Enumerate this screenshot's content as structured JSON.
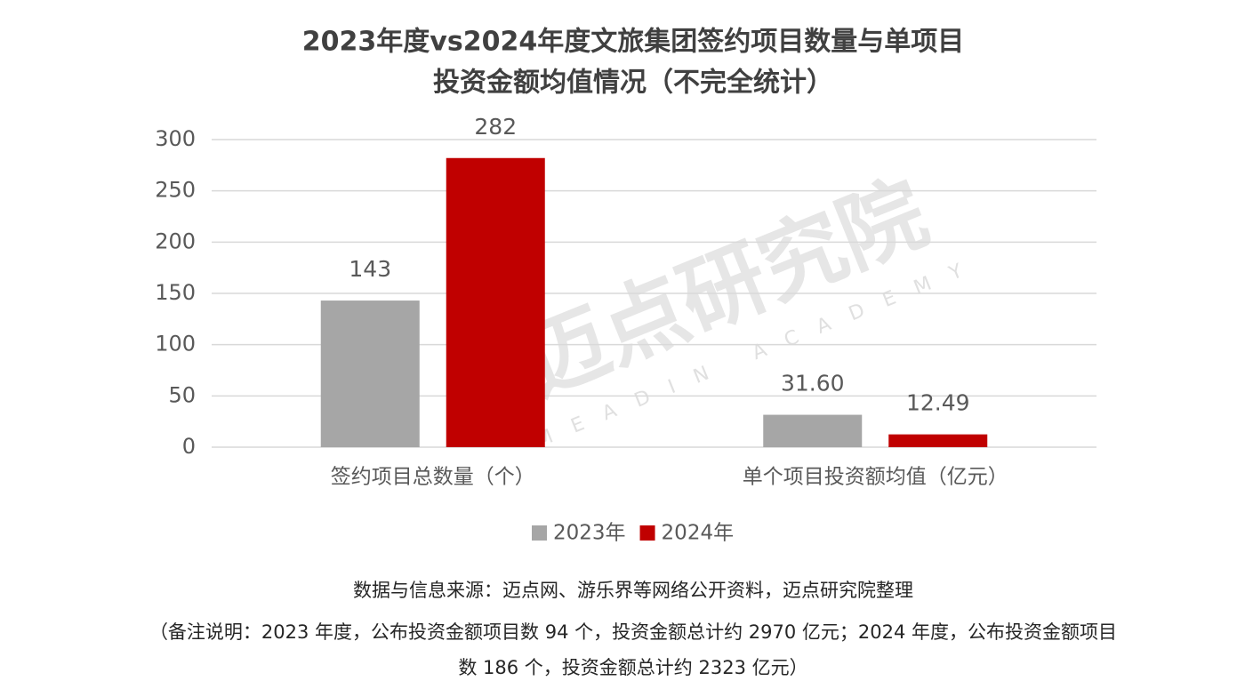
{
  "chart_data": {
    "type": "bar",
    "title": [
      "2023年度vs2024年度文旅集团签约项目数量与单项目",
      "投资金额均值情况（不完全统计）"
    ],
    "categories": [
      "签约项目总数量（个）",
      "单个项目投资额均值（亿元）"
    ],
    "series": [
      {
        "name": "2023年",
        "color": "#a6a6a6",
        "values": [
          143,
          31.6
        ],
        "value_labels": [
          "143",
          "31.60"
        ]
      },
      {
        "name": "2024年",
        "color": "#c00000",
        "values": [
          282,
          12.49
        ],
        "value_labels": [
          "282",
          "12.49"
        ]
      }
    ],
    "ylim": [
      0,
      300
    ],
    "yticks": [
      0,
      50,
      100,
      150,
      200,
      250,
      300
    ],
    "grid": true,
    "legend": "bottom",
    "watermark": {
      "text": "迈点研究院",
      "subtext": "MEADIN ACADEMY"
    },
    "source": "数据与信息来源：迈点网、游乐界等网络公开资料，迈点研究院整理",
    "note": [
      "（备注说明：2023 年度，公布投资金额项目数 94 个，投资金额总计约 2970 亿元；2024 年度，公布投资金额项目",
      "数 186 个，投资金额总计约 2323 亿元）"
    ]
  }
}
